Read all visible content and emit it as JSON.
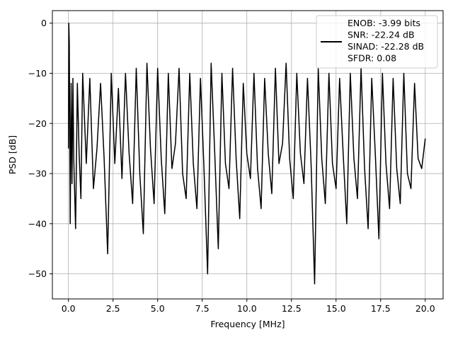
{
  "chart_data": {
    "type": "line",
    "title": "",
    "xlabel": "Frequency [MHz]",
    "ylabel": "PSD [dB]",
    "xlim": [
      -0.9,
      21.0
    ],
    "ylim": [
      -55,
      2.5
    ],
    "xticks": [
      0.0,
      2.5,
      5.0,
      7.5,
      10.0,
      12.5,
      15.0,
      17.5,
      20.0
    ],
    "xtick_labels": [
      "0.0",
      "2.5",
      "5.0",
      "7.5",
      "10.0",
      "12.5",
      "15.0",
      "17.5",
      "20.0"
    ],
    "yticks": [
      0,
      -10,
      -20,
      -30,
      -40,
      -50
    ],
    "ytick_labels": [
      "0",
      "−10",
      "−20",
      "−30",
      "−40",
      "−50"
    ],
    "grid": true,
    "legend": {
      "placement": "upper right",
      "lines": [
        "ENOB: -3.99 bits",
        "SNR: -22.24 dB",
        "SINAD: -22.28 dB",
        "SFDR: 0.08"
      ]
    },
    "series": [
      {
        "color": "#000000",
        "description": "noise-like spectrum, values mostly between -10 and -28 dB, peak at 0 dB near 0 MHz",
        "x": [
          0.0,
          0.02,
          0.05,
          0.1,
          0.15,
          0.2,
          0.25,
          0.3,
          0.4,
          0.5,
          0.6,
          0.7,
          0.8,
          1.0,
          1.2,
          1.4,
          1.6,
          1.8,
          2.0,
          2.2,
          2.4,
          2.6,
          2.8,
          3.0,
          3.2,
          3.4,
          3.6,
          3.8,
          4.0,
          4.2,
          4.4,
          4.6,
          4.8,
          5.0,
          5.2,
          5.4,
          5.6,
          5.8,
          6.0,
          6.2,
          6.4,
          6.6,
          6.8,
          7.0,
          7.2,
          7.4,
          7.6,
          7.8,
          8.0,
          8.2,
          8.4,
          8.6,
          8.8,
          9.0,
          9.2,
          9.4,
          9.6,
          9.8,
          10.0,
          10.2,
          10.4,
          10.6,
          10.8,
          11.0,
          11.2,
          11.4,
          11.6,
          11.8,
          12.0,
          12.2,
          12.4,
          12.6,
          12.8,
          13.0,
          13.2,
          13.4,
          13.6,
          13.8,
          14.0,
          14.2,
          14.4,
          14.6,
          14.8,
          15.0,
          15.2,
          15.4,
          15.6,
          15.8,
          16.0,
          16.2,
          16.4,
          16.6,
          16.8,
          17.0,
          17.2,
          17.4,
          17.6,
          17.8,
          18.0,
          18.2,
          18.4,
          18.6,
          18.8,
          19.0,
          19.2,
          19.4,
          19.6,
          19.8,
          20.0
        ],
        "y": [
          -25,
          0,
          -4,
          -40,
          -12,
          -32,
          -11,
          -27,
          -41,
          -12,
          -26,
          -35,
          -10,
          -28,
          -11,
          -33,
          -25,
          -12,
          -27,
          -46,
          -10,
          -28,
          -13,
          -31,
          -10,
          -26,
          -36,
          -9,
          -30,
          -42,
          -8,
          -25,
          -36,
          -9,
          -27,
          -38,
          -10,
          -29,
          -24,
          -9,
          -30,
          -35,
          -10,
          -28,
          -37,
          -11,
          -29,
          -50,
          -8,
          -26,
          -45,
          -10,
          -28,
          -33,
          -9,
          -27,
          -39,
          -12,
          -26,
          -31,
          -10,
          -29,
          -37,
          -11,
          -26,
          -34,
          -9,
          -28,
          -24,
          -8,
          -27,
          -35,
          -10,
          -26,
          -32,
          -11,
          -28,
          -52,
          -9,
          -27,
          -36,
          -10,
          -28,
          -33,
          -11,
          -26,
          -40,
          -10,
          -27,
          -35,
          -9,
          -29,
          -41,
          -11,
          -26,
          -43,
          -10,
          -28,
          -37,
          -11,
          -29,
          -36,
          -10,
          -30,
          -33,
          -12,
          -27,
          -29,
          -23
        ]
      }
    ]
  }
}
